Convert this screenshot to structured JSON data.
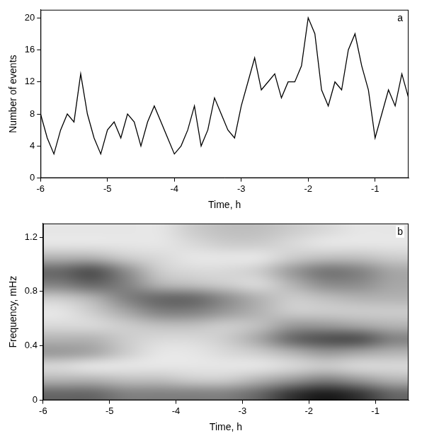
{
  "chart_data": [
    {
      "type": "line",
      "panel": "a",
      "color": "#000000",
      "grid": false,
      "x_label": "Time, h",
      "y_label": "Number of events",
      "xlim": [
        -6,
        -0.5
      ],
      "xticks": [
        -6,
        -5,
        -4,
        -3,
        -2,
        -1
      ],
      "ylim": [
        0,
        21
      ],
      "yticks": [
        0,
        4,
        8,
        12,
        16,
        20
      ],
      "x": [
        -6.0,
        -5.9,
        -5.8,
        -5.7,
        -5.6,
        -5.5,
        -5.4,
        -5.3,
        -5.2,
        -5.1,
        -5.0,
        -4.9,
        -4.8,
        -4.7,
        -4.6,
        -4.5,
        -4.4,
        -4.3,
        -4.2,
        -4.1,
        -4.0,
        -3.9,
        -3.8,
        -3.7,
        -3.6,
        -3.5,
        -3.4,
        -3.3,
        -3.2,
        -3.1,
        -3.0,
        -2.9,
        -2.8,
        -2.7,
        -2.6,
        -2.5,
        -2.4,
        -2.3,
        -2.2,
        -2.1,
        -2.0,
        -1.9,
        -1.8,
        -1.7,
        -1.6,
        -1.5,
        -1.4,
        -1.3,
        -1.2,
        -1.1,
        -1.0,
        -0.9,
        -0.8,
        -0.7,
        -0.6,
        -0.5
      ],
      "values": [
        8,
        5,
        3,
        6,
        8,
        7,
        13,
        8,
        5,
        3,
        6,
        7,
        5,
        8,
        7,
        4,
        7,
        9,
        7,
        5,
        3,
        4,
        6,
        9,
        4,
        6,
        10,
        8,
        6,
        5,
        9,
        12,
        15,
        11,
        12,
        13,
        10,
        12,
        12,
        14,
        20,
        18,
        11,
        9,
        12,
        11,
        16,
        18,
        14,
        11,
        5,
        8,
        11,
        9,
        13,
        10
      ]
    },
    {
      "type": "heatmap",
      "panel": "b",
      "color": "#000000",
      "grid": false,
      "x_label": "Time, h",
      "y_label": "Frequency, mHz",
      "xlim": [
        -6,
        -0.5
      ],
      "xticks": [
        -6,
        -5,
        -4,
        -3,
        -2,
        -1
      ],
      "ylim": [
        0,
        1.3
      ],
      "yticks": [
        0,
        0.4,
        0.8,
        1.2
      ],
      "x_edges": [
        -6.0,
        -5.5,
        -5.0,
        -4.5,
        -4.0,
        -3.5,
        -3.0,
        -2.5,
        -2.0,
        -1.5,
        -1.0,
        -0.5
      ],
      "y_edges": [
        0,
        0.1,
        0.2,
        0.3,
        0.4,
        0.5,
        0.6,
        0.7,
        0.8,
        0.9,
        1.0,
        1.1,
        1.2,
        1.3
      ],
      "cells": [
        [
          0.6,
          0.6,
          0.5,
          0.5,
          0.5,
          0.5,
          0.6,
          0.8,
          0.9,
          0.8,
          0.6
        ],
        [
          0.3,
          0.3,
          0.25,
          0.25,
          0.2,
          0.2,
          0.3,
          0.4,
          0.5,
          0.4,
          0.3
        ],
        [
          0.15,
          0.1,
          0.1,
          0.1,
          0.1,
          0.1,
          0.1,
          0.15,
          0.2,
          0.15,
          0.15
        ],
        [
          0.4,
          0.35,
          0.2,
          0.1,
          0.1,
          0.15,
          0.2,
          0.3,
          0.4,
          0.35,
          0.3
        ],
        [
          0.3,
          0.3,
          0.2,
          0.15,
          0.15,
          0.2,
          0.35,
          0.6,
          0.7,
          0.7,
          0.5
        ],
        [
          0.15,
          0.15,
          0.2,
          0.25,
          0.25,
          0.2,
          0.25,
          0.4,
          0.4,
          0.35,
          0.3
        ],
        [
          0.1,
          0.2,
          0.35,
          0.5,
          0.5,
          0.4,
          0.3,
          0.2,
          0.2,
          0.2,
          0.2
        ],
        [
          0.2,
          0.3,
          0.5,
          0.6,
          0.6,
          0.45,
          0.3,
          0.2,
          0.25,
          0.3,
          0.3
        ],
        [
          0.5,
          0.6,
          0.5,
          0.3,
          0.25,
          0.2,
          0.15,
          0.3,
          0.45,
          0.45,
          0.35
        ],
        [
          0.6,
          0.7,
          0.45,
          0.2,
          0.15,
          0.15,
          0.2,
          0.4,
          0.55,
          0.5,
          0.35
        ],
        [
          0.3,
          0.3,
          0.2,
          0.15,
          0.1,
          0.1,
          0.1,
          0.2,
          0.25,
          0.25,
          0.2
        ],
        [
          0.1,
          0.1,
          0.1,
          0.1,
          0.15,
          0.2,
          0.2,
          0.15,
          0.1,
          0.1,
          0.1
        ],
        [
          0.1,
          0.1,
          0.1,
          0.1,
          0.2,
          0.25,
          0.25,
          0.2,
          0.15,
          0.1,
          0.1
        ]
      ]
    }
  ]
}
